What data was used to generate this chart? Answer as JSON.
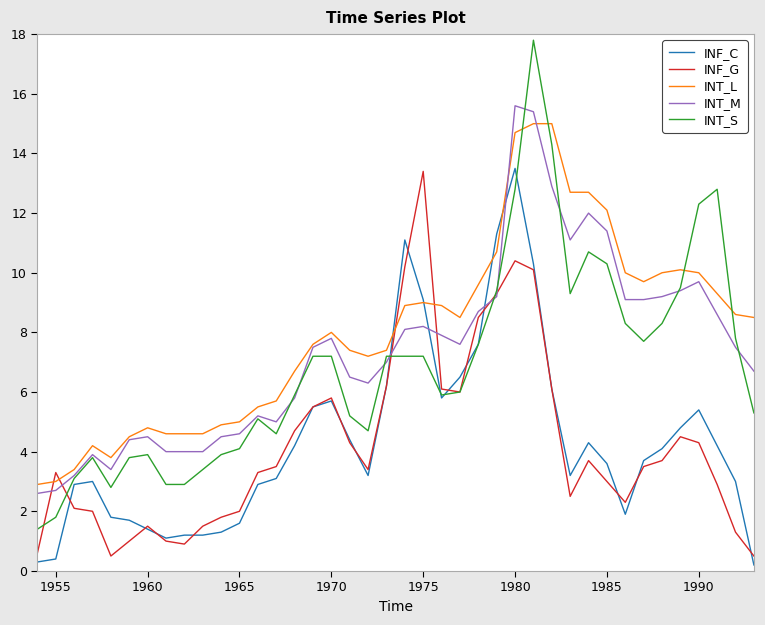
{
  "title": "Time Series Plot",
  "xlabel": "Time",
  "ylabel": "",
  "years": [
    1954,
    1955,
    1956,
    1957,
    1958,
    1959,
    1960,
    1961,
    1962,
    1963,
    1964,
    1965,
    1966,
    1967,
    1968,
    1969,
    1970,
    1971,
    1972,
    1973,
    1974,
    1975,
    1976,
    1977,
    1978,
    1979,
    1980,
    1981,
    1982,
    1983,
    1984,
    1985,
    1986,
    1987,
    1988,
    1989,
    1990,
    1991,
    1992,
    1993
  ],
  "INF_C": [
    0.3,
    0.4,
    2.9,
    3.0,
    1.8,
    1.7,
    1.4,
    1.1,
    1.2,
    1.2,
    1.3,
    1.6,
    2.9,
    3.1,
    4.2,
    5.5,
    5.7,
    4.4,
    3.2,
    6.2,
    11.1,
    9.1,
    5.8,
    6.5,
    7.6,
    11.3,
    13.5,
    10.3,
    6.1,
    3.2,
    4.3,
    3.6,
    1.9,
    3.7,
    4.1,
    4.8,
    5.4,
    4.2,
    3.0,
    0.2
  ],
  "INF_G": [
    0.6,
    3.3,
    2.1,
    2.0,
    0.5,
    1.0,
    1.5,
    1.0,
    0.9,
    1.5,
    1.8,
    2.0,
    3.3,
    3.5,
    4.7,
    5.5,
    5.8,
    4.3,
    3.4,
    6.2,
    10.2,
    13.4,
    6.1,
    6.0,
    8.5,
    9.3,
    10.4,
    10.1,
    6.1,
    2.5,
    3.7,
    3.0,
    2.3,
    3.5,
    3.7,
    4.5,
    4.3,
    2.9,
    1.3,
    0.5
  ],
  "INT_L": [
    2.9,
    3.0,
    3.4,
    4.2,
    3.8,
    4.5,
    4.8,
    4.6,
    4.6,
    4.6,
    4.9,
    5.0,
    5.5,
    5.7,
    6.7,
    7.6,
    8.0,
    7.4,
    7.2,
    7.4,
    8.9,
    9.0,
    8.9,
    8.5,
    9.6,
    10.7,
    14.7,
    15.0,
    15.0,
    12.7,
    12.7,
    12.1,
    10.0,
    9.7,
    10.0,
    10.1,
    10.0,
    9.3,
    8.6,
    8.5
  ],
  "INT_M": [
    2.6,
    2.7,
    3.2,
    3.9,
    3.4,
    4.4,
    4.5,
    4.0,
    4.0,
    4.0,
    4.5,
    4.6,
    5.2,
    5.0,
    5.8,
    7.5,
    7.8,
    6.5,
    6.3,
    7.0,
    8.1,
    8.2,
    7.9,
    7.6,
    8.7,
    9.2,
    15.6,
    15.4,
    12.9,
    11.1,
    12.0,
    11.4,
    9.1,
    9.1,
    9.2,
    9.4,
    9.7,
    8.6,
    7.5,
    6.7
  ],
  "INT_S": [
    1.4,
    1.8,
    3.1,
    3.8,
    2.8,
    3.8,
    3.9,
    2.9,
    2.9,
    3.4,
    3.9,
    4.1,
    5.1,
    4.6,
    5.9,
    7.2,
    7.2,
    5.2,
    4.7,
    7.2,
    7.2,
    7.2,
    5.9,
    6.0,
    7.6,
    9.4,
    12.8,
    17.8,
    14.3,
    9.3,
    10.7,
    10.3,
    8.3,
    7.7,
    8.3,
    9.5,
    12.3,
    12.8,
    7.8,
    5.3
  ],
  "colors": {
    "INF_C": "#1f77b4",
    "INF_G": "#d62728",
    "INT_L": "#ff7f0e",
    "INT_M": "#9467bd",
    "INT_S": "#2ca02c"
  },
  "ylim": [
    0,
    18
  ],
  "yticks": [
    0,
    2,
    4,
    6,
    8,
    10,
    12,
    14,
    16,
    18
  ],
  "xticks": [
    1955,
    1960,
    1965,
    1970,
    1975,
    1980,
    1985,
    1990
  ],
  "background_color": "#e8e8e8",
  "plot_bg_color": "#ffffff",
  "title_fontsize": 11,
  "label_fontsize": 10,
  "tick_fontsize": 9,
  "legend_fontsize": 9
}
